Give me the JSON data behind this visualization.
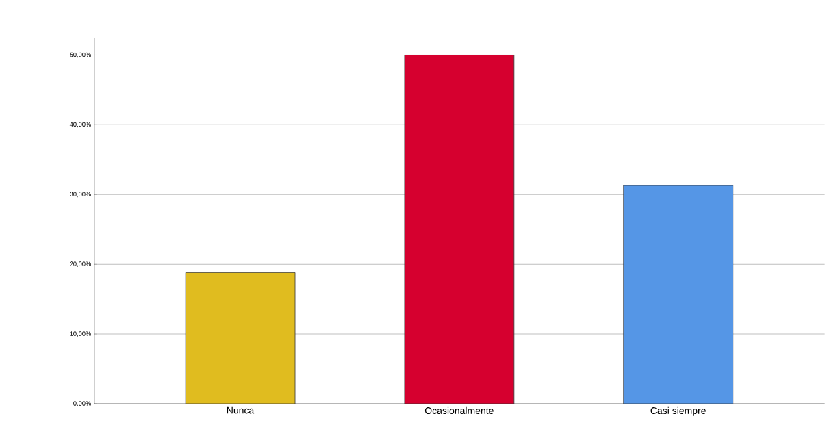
{
  "chart_data": {
    "type": "bar",
    "categories": [
      "Nunca",
      "Ocasionalmente",
      "Casi siempre"
    ],
    "values": [
      18.8,
      50,
      31.3
    ],
    "colors": [
      "#e0bc1f",
      "#d6002f",
      "#5596e6"
    ],
    "ylim": [
      0,
      52.5
    ],
    "yticks": [
      {
        "value": 0,
        "label": "0,00%"
      },
      {
        "value": 10,
        "label": "10,00%"
      },
      {
        "value": 20,
        "label": "20,00%"
      },
      {
        "value": 30,
        "label": "30,00%"
      },
      {
        "value": 40,
        "label": "40,00%"
      },
      {
        "value": 50,
        "label": "50,00%"
      }
    ],
    "grid": "y"
  }
}
